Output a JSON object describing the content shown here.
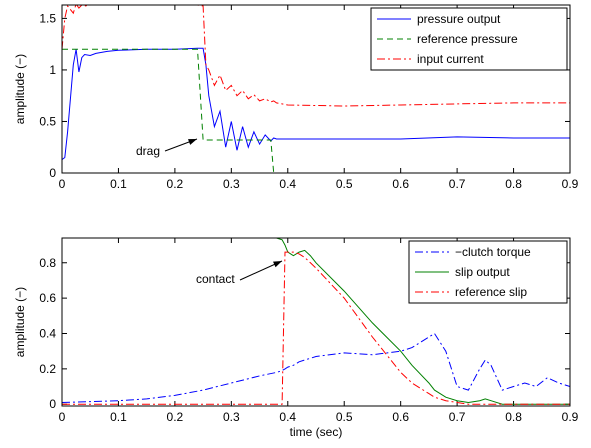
{
  "chart_data": [
    {
      "type": "line",
      "ylabel": "amplitude (−)",
      "legend": "upper right",
      "grid": false,
      "xlim": [
        0,
        0.9
      ],
      "xticks": [
        0,
        0.1,
        0.2,
        0.3,
        0.4,
        0.5,
        0.6,
        0.7,
        0.8,
        0.9
      ],
      "ylim": [
        0,
        1.63
      ],
      "yticks": [
        0,
        0.5,
        1,
        1.5
      ],
      "x": [
        0,
        0.005,
        0.01,
        0.02,
        0.025,
        0.03,
        0.035,
        0.04,
        0.05,
        0.06,
        0.08,
        0.1,
        0.15,
        0.2,
        0.24,
        0.25,
        0.255,
        0.26,
        0.27,
        0.28,
        0.29,
        0.3,
        0.31,
        0.32,
        0.33,
        0.34,
        0.35,
        0.36,
        0.37,
        0.375,
        0.38,
        0.4,
        0.5,
        0.6,
        0.7,
        0.8,
        0.9
      ],
      "series": [
        {
          "name": "pressure output",
          "color": "#0000ff",
          "dash": "solid",
          "values": [
            0.13,
            0.15,
            0.4,
            1.05,
            1.2,
            0.98,
            1.12,
            1.15,
            1.14,
            1.16,
            1.18,
            1.19,
            1.2,
            1.2,
            1.21,
            1.21,
            1.05,
            0.75,
            0.45,
            0.6,
            0.25,
            0.5,
            0.22,
            0.45,
            0.25,
            0.4,
            0.28,
            0.37,
            0.31,
            0.34,
            0.33,
            0.33,
            0.33,
            0.33,
            0.35,
            0.34,
            0.34
          ]
        },
        {
          "name": "reference pressure",
          "color": "#008000",
          "dash": "dashed",
          "values": [
            1.2,
            1.2,
            1.2,
            1.2,
            1.2,
            1.2,
            1.2,
            1.2,
            1.2,
            1.2,
            1.2,
            1.2,
            1.2,
            1.2,
            1.2,
            0.32,
            0.32,
            0.32,
            0.32,
            0.32,
            0.32,
            0.32,
            0.32,
            0.32,
            0.32,
            0.32,
            0.32,
            0.32,
            0.32,
            0,
            0,
            0,
            0,
            0,
            0,
            0,
            0
          ]
        },
        {
          "name": "input current",
          "color": "#ff0000",
          "dash": "dashdot",
          "values": [
            1.2,
            1.5,
            1.62,
            1.55,
            1.64,
            1.6,
            1.63,
            1.62,
            1.63,
            1.63,
            1.63,
            1.63,
            1.63,
            1.63,
            1.63,
            1.62,
            1.05,
            1.0,
            0.85,
            0.95,
            0.8,
            0.85,
            0.75,
            0.8,
            0.72,
            0.76,
            0.7,
            0.72,
            0.69,
            0.7,
            0.68,
            0.66,
            0.65,
            0.66,
            0.67,
            0.68,
            0.68
          ]
        }
      ],
      "annotations": [
        {
          "text": "drag"
        }
      ]
    },
    {
      "type": "line",
      "ylabel": "amplitude (−)",
      "xlabel": "time (sec)",
      "legend": "upper right",
      "grid": false,
      "xlim": [
        0,
        0.9
      ],
      "xticks": [
        0,
        0.1,
        0.2,
        0.3,
        0.4,
        0.5,
        0.6,
        0.7,
        0.8,
        0.9
      ],
      "ylim": [
        -0.01,
        0.94
      ],
      "yticks": [
        0,
        0.2,
        0.4,
        0.6,
        0.8
      ],
      "x": [
        0,
        0.05,
        0.1,
        0.15,
        0.2,
        0.25,
        0.3,
        0.35,
        0.38,
        0.39,
        0.395,
        0.4,
        0.41,
        0.42,
        0.43,
        0.44,
        0.45,
        0.5,
        0.55,
        0.6,
        0.62,
        0.65,
        0.66,
        0.68,
        0.7,
        0.72,
        0.74,
        0.75,
        0.76,
        0.78,
        0.8,
        0.82,
        0.84,
        0.86,
        0.88,
        0.9
      ],
      "series": [
        {
          "name": "−clutch torque",
          "color": "#0000ff",
          "dash": "dashdot",
          "values": [
            0.01,
            0.015,
            0.02,
            0.03,
            0.05,
            0.08,
            0.12,
            0.16,
            0.18,
            0.19,
            0.2,
            0.21,
            0.22,
            0.24,
            0.25,
            0.26,
            0.27,
            0.29,
            0.28,
            0.3,
            0.32,
            0.38,
            0.4,
            0.3,
            0.1,
            0.08,
            0.2,
            0.25,
            0.22,
            0.08,
            0.1,
            0.12,
            0.1,
            0.15,
            0.12,
            0.1
          ]
        },
        {
          "name": "slip output",
          "color": "#008000",
          "dash": "solid",
          "values": [
            0.97,
            0.97,
            0.97,
            0.97,
            0.97,
            0.965,
            0.96,
            0.95,
            0.94,
            0.93,
            0.9,
            0.86,
            0.84,
            0.86,
            0.87,
            0.84,
            0.8,
            0.64,
            0.46,
            0.3,
            0.22,
            0.12,
            0.08,
            0.04,
            0.02,
            0.01,
            0.02,
            0.03,
            0.02,
            0,
            0,
            0,
            0,
            0,
            0,
            0
          ]
        },
        {
          "name": "reference slip",
          "color": "#ff0000",
          "dash": "dashdot",
          "values": [
            0,
            0,
            0,
            0,
            0,
            0,
            0,
            0,
            0,
            0,
            0.86,
            0.86,
            0.86,
            0.85,
            0.83,
            0.8,
            0.77,
            0.6,
            0.38,
            0.18,
            0.12,
            0.06,
            0.04,
            0.02,
            0.01,
            0,
            0,
            0,
            0,
            0,
            0,
            0,
            0,
            0,
            0,
            0
          ]
        }
      ],
      "annotations": [
        {
          "text": "contact"
        }
      ]
    }
  ]
}
